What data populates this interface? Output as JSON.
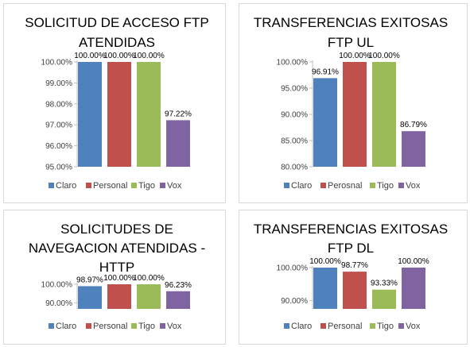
{
  "chart_data": [
    {
      "type": "bar",
      "title": [
        "SOLICITUD DE ACCESO FTP",
        "ATENDIDAS"
      ],
      "categories": [
        "Claro",
        "Personal",
        "Tigo",
        "Vox"
      ],
      "values": [
        100.0,
        100.0,
        100.0,
        97.22
      ],
      "data_labels": [
        "100.00%",
        "100.00%",
        "100.00%",
        "97.22%"
      ],
      "ylim": [
        95,
        100
      ],
      "yticks": [
        95,
        96,
        97,
        98,
        99,
        100
      ],
      "ytick_labels": [
        "95.00%",
        "96.00%",
        "97.00%",
        "98.00%",
        "99.00%",
        "100.00%"
      ],
      "colors": [
        "#4f81bd",
        "#c0504d",
        "#9bbb59",
        "#8064a2"
      ],
      "legend_position": "bottom",
      "grid": false
    },
    {
      "type": "bar",
      "title": [
        "TRANSFERENCIAS EXITOSAS",
        "FTP UL"
      ],
      "categories": [
        "Claro",
        "Perosnal",
        "Tigo",
        "Vox"
      ],
      "values": [
        96.91,
        100.0,
        100.0,
        86.79
      ],
      "data_labels": [
        "96.91%",
        "100.00%",
        "100.00%",
        "86.79%"
      ],
      "ylim": [
        80,
        100
      ],
      "yticks": [
        80,
        85,
        90,
        95,
        100
      ],
      "ytick_labels": [
        "80.00%",
        "85.00%",
        "90.00%",
        "95.00%",
        "100.00%"
      ],
      "colors": [
        "#4f81bd",
        "#c0504d",
        "#9bbb59",
        "#8064a2"
      ],
      "legend_position": "bottom",
      "grid": false
    },
    {
      "type": "bar",
      "title": [
        "SOLICITUDES DE",
        "NAVEGACION ATENDIDAS -",
        "HTTP"
      ],
      "categories": [
        "Claro",
        "Personal",
        "Tigo",
        "Vox"
      ],
      "values": [
        98.97,
        100.0,
        100.0,
        96.23
      ],
      "data_labels": [
        "98.97%",
        "100.00%",
        "100.00%",
        "96.23%"
      ],
      "ylim": [
        86.67,
        100
      ],
      "yticks": [
        90,
        100
      ],
      "ytick_labels": [
        "90.00%",
        "100.00%"
      ],
      "colors": [
        "#4f81bd",
        "#c0504d",
        "#9bbb59",
        "#8064a2"
      ],
      "legend_position": "bottom",
      "grid": false
    },
    {
      "type": "bar",
      "title": [
        "TRANSFERENCIAS EXITOSAS",
        "FTP DL"
      ],
      "categories": [
        "Claro",
        "Personal",
        "Tigo",
        "Vox"
      ],
      "values": [
        100.0,
        98.77,
        93.33,
        100.0
      ],
      "data_labels": [
        "100.00%",
        "98.77%",
        "93.33%",
        "100.00%"
      ],
      "ylim": [
        87.5,
        100
      ],
      "yticks": [
        90,
        100
      ],
      "ytick_labels": [
        "90.00%",
        "100.00%"
      ],
      "colors": [
        "#4f81bd",
        "#c0504d",
        "#9bbb59",
        "#8064a2"
      ],
      "legend_position": "bottom",
      "grid": false
    }
  ]
}
